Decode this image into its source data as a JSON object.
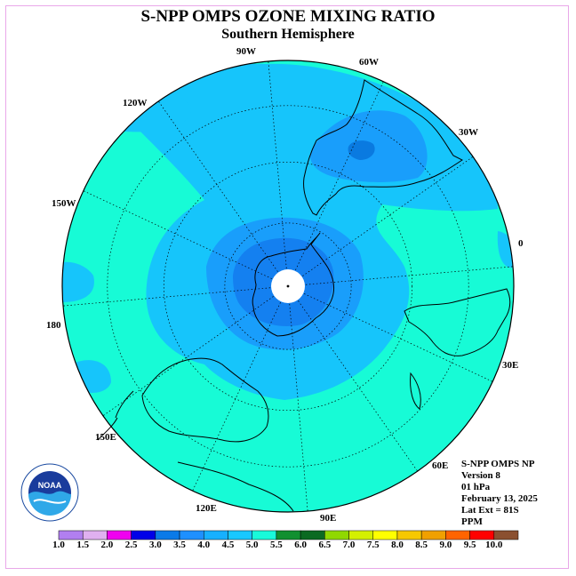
{
  "title": "S-NPP OMPS OZONE MIXING RATIO",
  "subtitle": "Southern Hemisphere",
  "longitude_labels": [
    "90W",
    "60W",
    "30W",
    "0",
    "30E",
    "60E",
    "90E",
    "120E",
    "150E",
    "180",
    "150W",
    "120W"
  ],
  "info": [
    "S-NPP OMPS NP",
    "Version 8",
    "01 hPa",
    "February 13, 2025",
    "Lat Ext = 81S",
    "PPM"
  ],
  "logo_text": "NOAA",
  "logo_ring_text": "NATIONAL OCEANIC AND ATMOSPHERIC ADMINISTRATION · U.S. DEPARTMENT OF COMMERCE",
  "colorbar": {
    "ticks": [
      "1.0",
      "1.5",
      "2.0",
      "2.5",
      "3.0",
      "3.5",
      "4.0",
      "4.5",
      "5.0",
      "5.5",
      "6.0",
      "6.5",
      "7.0",
      "7.5",
      "8.0",
      "8.5",
      "9.0",
      "9.5",
      "10.0"
    ],
    "colors": [
      "#b17ff0",
      "#e0b0f0",
      "#f000f0",
      "#0000e8",
      "#0a7ae8",
      "#1e90ff",
      "#17b0ff",
      "#19c8ff",
      "#19fada",
      "#119030",
      "#0b6a22",
      "#90d800",
      "#d4f000",
      "#ffff00",
      "#f6c800",
      "#f0a000",
      "#ff6400",
      "#ff0000",
      "#8b5030"
    ]
  },
  "map": {
    "background_color": "#17fbd6",
    "outer_light_blue": "#16c5fb",
    "mid_blue": "#199efb",
    "inner_blue": "#1480f0",
    "dark_blue": "#0a7ae0"
  }
}
